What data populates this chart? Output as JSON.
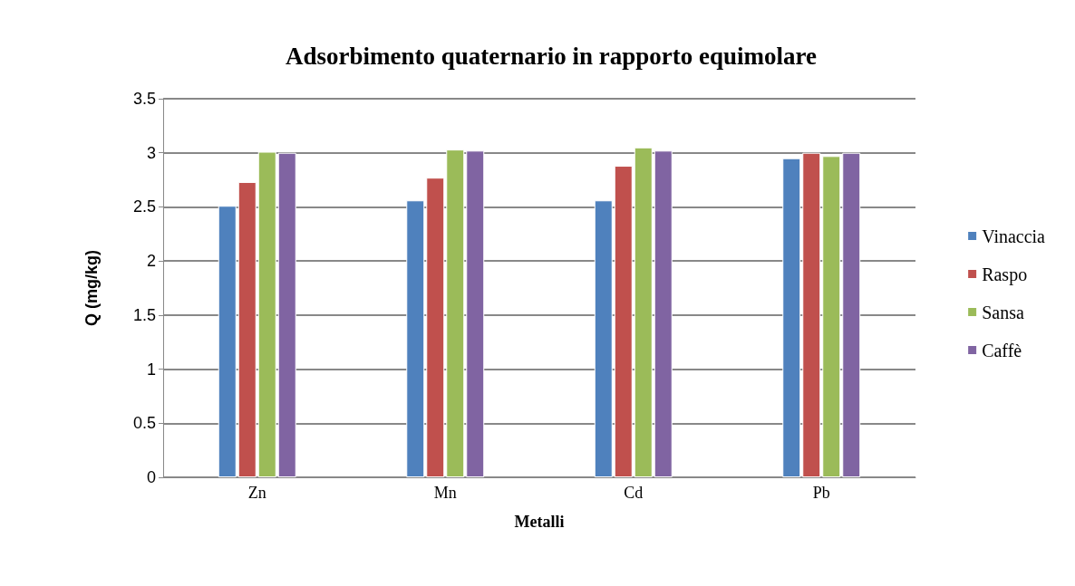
{
  "chart_data": {
    "type": "bar",
    "title": "Adsorbimento quaternario in rapporto equimolare",
    "xlabel": "Metalli",
    "ylabel": "Q (mg/kg)",
    "categories": [
      "Zn",
      "Mn",
      "Cd",
      "Pb"
    ],
    "series": [
      {
        "name": "Vinaccia",
        "color": "#4f81bd",
        "values": [
          2.51,
          2.56,
          2.56,
          2.95
        ]
      },
      {
        "name": "Raspo",
        "color": "#c0504d",
        "values": [
          2.73,
          2.77,
          2.88,
          3.0
        ]
      },
      {
        "name": "Sansa",
        "color": "#9bbb59",
        "values": [
          3.01,
          3.03,
          3.05,
          2.97
        ]
      },
      {
        "name": "Caffè",
        "color": "#8064a2",
        "values": [
          3.0,
          3.02,
          3.02,
          3.0
        ]
      }
    ],
    "ylim": [
      0,
      3.5
    ],
    "yticks": [
      0,
      0.5,
      1,
      1.5,
      2,
      2.5,
      3,
      3.5
    ],
    "grid": "y",
    "legend": "right"
  }
}
